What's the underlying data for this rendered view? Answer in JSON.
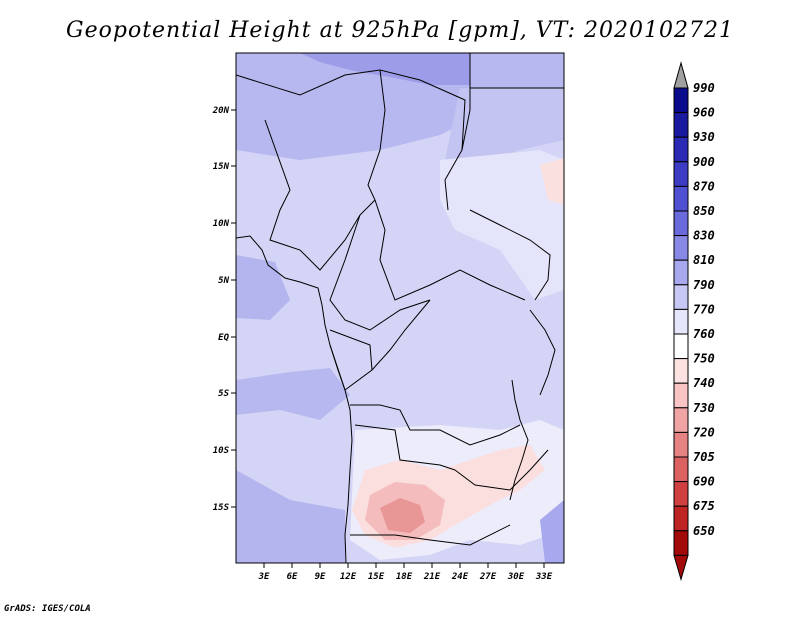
{
  "title": "Geopotential Height at 925hPa [gpm], VT: 2020102721",
  "credit": "GrADS: IGES/COLA",
  "map": {
    "lat_labels": [
      "20N",
      "15N",
      "10N",
      "5N",
      "EQ",
      "5S",
      "10S",
      "15S"
    ],
    "lon_labels": [
      "3E",
      "6E",
      "9E",
      "12E",
      "15E",
      "18E",
      "21E",
      "24E",
      "27E",
      "30E",
      "33E"
    ]
  },
  "colorbar": {
    "labels": [
      "990",
      "960",
      "930",
      "900",
      "870",
      "850",
      "830",
      "810",
      "790",
      "770",
      "760",
      "750",
      "740",
      "730",
      "720",
      "705",
      "690",
      "675",
      "650"
    ],
    "colors": [
      "#0a0a8c",
      "#1a1aa0",
      "#2a2ab4",
      "#3c3cc4",
      "#5050d2",
      "#6a6adc",
      "#8888e6",
      "#a8a8ee",
      "#c8c8f4",
      "#e6e6fa",
      "#ffffff",
      "#fde2e2",
      "#f8c4c4",
      "#f0a4a4",
      "#e68484",
      "#dc6262",
      "#d04040",
      "#bf2424",
      "#a30a0a"
    ],
    "top_arrow_color": "#a0a0a0",
    "bottom_arrow_color": "#a30a0a"
  }
}
